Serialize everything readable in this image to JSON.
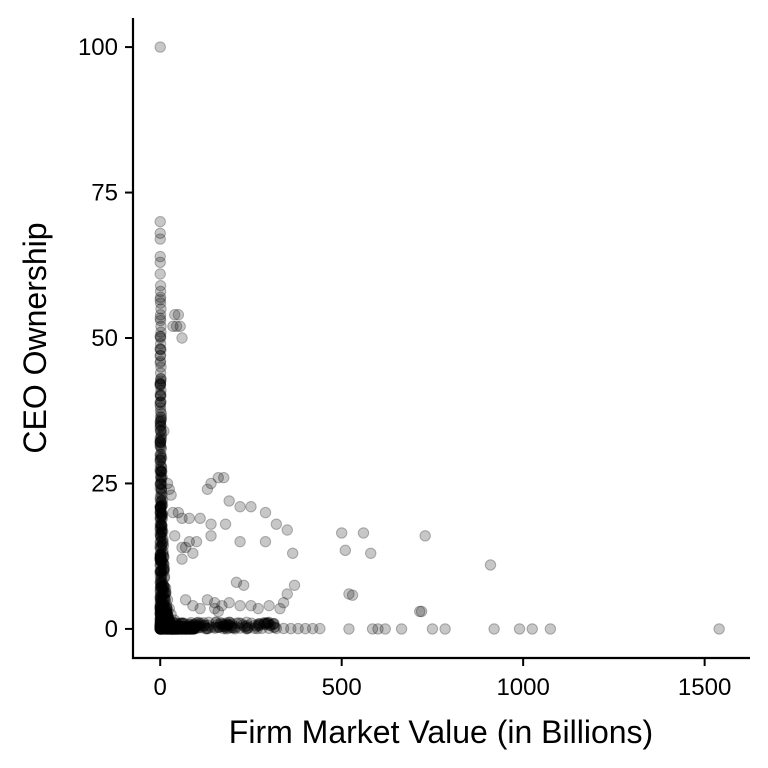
{
  "chart_data": {
    "type": "scatter",
    "xlabel": "Firm Market Value (in Billions)",
    "ylabel": "CEO Ownership",
    "xlim": [
      -75,
      1625
    ],
    "ylim": [
      -5,
      105
    ],
    "x_ticks": [
      0,
      500,
      1000,
      1500
    ],
    "y_ticks": [
      0,
      25,
      50,
      75,
      100
    ],
    "grid": false,
    "legend": "none",
    "point_color": "#000000",
    "point_opacity": 0.22,
    "series": [
      {
        "points": [
          [
            0,
            100
          ],
          [
            0,
            70
          ],
          [
            0,
            68
          ],
          [
            0,
            67
          ],
          [
            0,
            64
          ],
          [
            0,
            63
          ],
          [
            0,
            61
          ],
          [
            1,
            59
          ],
          [
            1,
            58
          ],
          [
            1,
            57
          ],
          [
            1,
            56
          ],
          [
            2,
            55
          ],
          [
            1,
            54
          ],
          [
            1,
            53
          ],
          [
            2,
            52
          ],
          [
            2,
            51
          ],
          [
            1,
            50
          ],
          [
            1,
            49
          ],
          [
            2,
            48
          ],
          [
            1,
            47
          ],
          [
            1,
            46
          ],
          [
            2,
            45
          ],
          [
            1,
            44
          ],
          [
            2,
            43
          ],
          [
            1,
            42
          ],
          [
            2,
            41
          ],
          [
            1,
            40
          ],
          [
            2,
            39
          ],
          [
            1,
            38
          ],
          [
            3,
            37
          ],
          [
            2,
            36
          ],
          [
            1,
            35
          ],
          [
            3,
            34
          ],
          [
            2,
            33
          ],
          [
            1,
            32
          ],
          [
            3,
            31
          ],
          [
            2,
            30
          ],
          [
            1,
            29
          ],
          [
            3,
            28
          ],
          [
            2,
            27
          ],
          [
            4,
            26
          ],
          [
            1,
            25
          ],
          [
            3,
            24
          ],
          [
            5,
            23
          ],
          [
            2,
            22
          ],
          [
            4,
            21
          ],
          [
            1,
            20
          ],
          [
            6,
            19
          ],
          [
            3,
            18
          ],
          [
            5,
            17
          ],
          [
            2,
            16
          ],
          [
            8,
            15
          ],
          [
            4,
            14
          ],
          [
            7,
            13
          ],
          [
            3,
            12
          ],
          [
            10,
            11
          ],
          [
            5,
            10
          ],
          [
            12,
            9
          ],
          [
            4,
            8
          ],
          [
            15,
            7
          ],
          [
            6,
            6
          ],
          [
            20,
            5
          ],
          [
            9,
            4
          ],
          [
            25,
            3.5
          ],
          [
            12,
            3
          ],
          [
            30,
            2.5
          ],
          [
            18,
            2
          ],
          [
            40,
            1.5
          ],
          [
            60,
            1
          ],
          [
            80,
            0.7
          ],
          [
            100,
            0.5
          ],
          [
            120,
            0.4
          ],
          [
            140,
            0.3
          ],
          [
            160,
            0.25
          ],
          [
            180,
            0.2
          ],
          [
            200,
            0.2
          ],
          [
            220,
            0.15
          ],
          [
            240,
            0.15
          ],
          [
            260,
            0.1
          ],
          [
            280,
            0.1
          ],
          [
            300,
            0.1
          ],
          [
            320,
            0.08
          ],
          [
            340,
            0.08
          ],
          [
            360,
            0.05
          ],
          [
            380,
            0.05
          ],
          [
            400,
            0.05
          ],
          [
            420,
            0.05
          ],
          [
            440,
            0.05
          ],
          [
            40,
            54
          ],
          [
            50,
            54
          ],
          [
            45,
            52
          ],
          [
            55,
            52
          ],
          [
            35,
            52
          ],
          [
            60,
            50
          ],
          [
            10,
            34
          ],
          [
            20,
            25
          ],
          [
            30,
            23
          ],
          [
            25,
            24
          ],
          [
            35,
            20
          ],
          [
            50,
            20
          ],
          [
            60,
            19
          ],
          [
            80,
            19
          ],
          [
            110,
            19
          ],
          [
            130,
            24
          ],
          [
            140,
            25
          ],
          [
            160,
            26
          ],
          [
            175,
            26
          ],
          [
            190,
            22
          ],
          [
            220,
            21
          ],
          [
            250,
            21
          ],
          [
            290,
            20
          ],
          [
            320,
            18
          ],
          [
            350,
            17
          ],
          [
            140,
            18
          ],
          [
            180,
            18
          ],
          [
            140,
            16
          ],
          [
            100,
            15
          ],
          [
            80,
            15
          ],
          [
            40,
            16
          ],
          [
            60,
            14
          ],
          [
            70,
            14
          ],
          [
            90,
            13
          ],
          [
            60,
            12
          ],
          [
            290,
            15
          ],
          [
            365,
            13
          ],
          [
            220,
            15
          ],
          [
            500,
            16.5
          ],
          [
            510,
            13.5
          ],
          [
            560,
            16.5
          ],
          [
            580,
            13
          ],
          [
            730,
            16
          ],
          [
            910,
            11
          ],
          [
            210,
            8
          ],
          [
            230,
            7.5
          ],
          [
            350,
            6
          ],
          [
            370,
            7.5
          ],
          [
            520,
            6
          ],
          [
            530,
            5.8
          ],
          [
            715,
            3
          ],
          [
            720,
            3
          ],
          [
            130,
            5
          ],
          [
            150,
            4.5
          ],
          [
            170,
            4
          ],
          [
            190,
            4.5
          ],
          [
            220,
            4
          ],
          [
            250,
            4
          ],
          [
            270,
            3.5
          ],
          [
            300,
            4
          ],
          [
            330,
            3.5
          ],
          [
            340,
            4.5
          ],
          [
            90,
            4
          ],
          [
            70,
            5
          ],
          [
            110,
            3.5
          ],
          [
            150,
            3.5
          ],
          [
            160,
            3
          ],
          [
            520,
            0
          ],
          [
            585,
            0
          ],
          [
            600,
            0
          ],
          [
            620,
            0
          ],
          [
            665,
            0
          ],
          [
            750,
            0
          ],
          [
            785,
            0
          ],
          [
            920,
            0
          ],
          [
            990,
            0
          ],
          [
            1025,
            0
          ],
          [
            1075,
            0
          ],
          [
            1540,
            0
          ]
        ]
      }
    ]
  }
}
